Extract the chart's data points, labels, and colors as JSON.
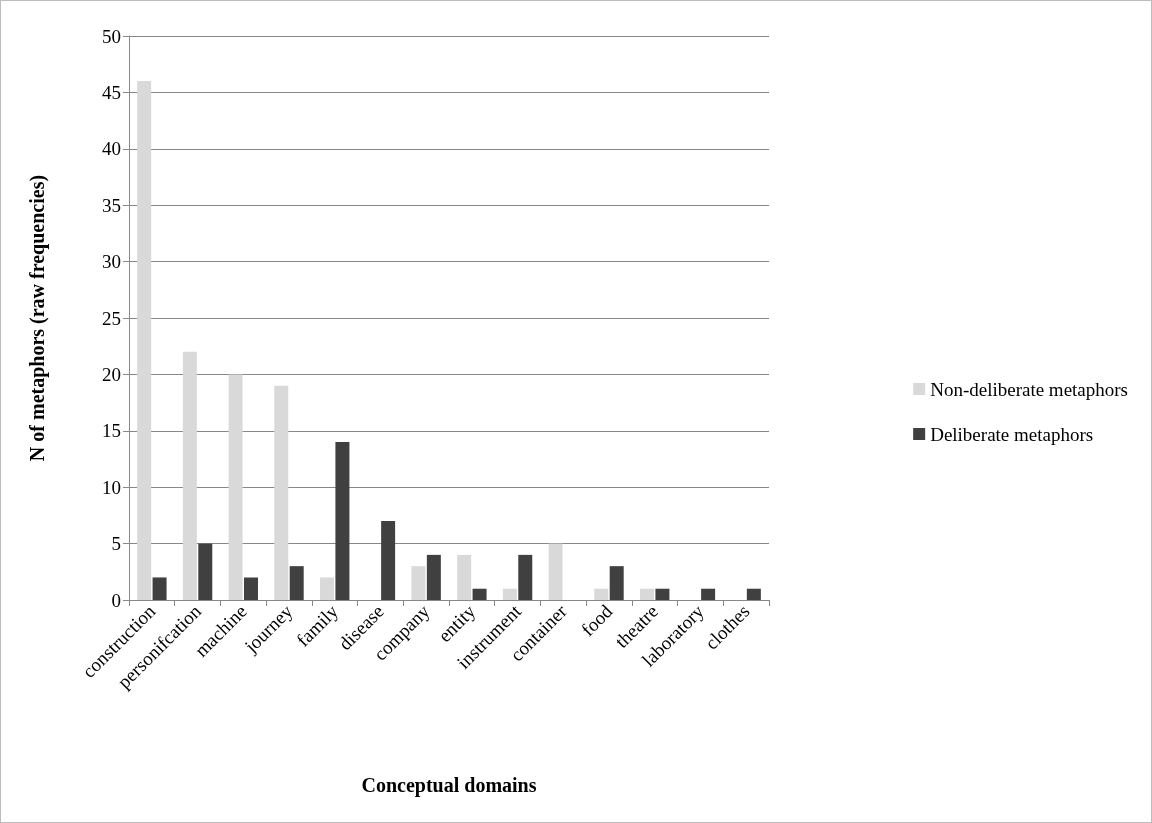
{
  "chart_data": {
    "type": "bar",
    "categories": [
      "construction",
      "personifcation",
      "machine",
      "journey",
      "family",
      "disease",
      "company",
      "entity",
      "instrument",
      "container",
      "food",
      "theatre",
      "laboratory",
      "clothes"
    ],
    "series": [
      {
        "name": "Non-deliberate metaphors",
        "color": "#d9d9d9",
        "values": [
          46,
          22,
          20,
          19,
          2,
          0,
          3,
          4,
          1,
          5,
          1,
          1,
          0,
          0
        ]
      },
      {
        "name": "Deliberate metaphors",
        "color": "#404040",
        "values": [
          2,
          5,
          2,
          3,
          14,
          7,
          4,
          1,
          4,
          0,
          3,
          1,
          1,
          1
        ]
      }
    ],
    "xlabel": "Conceptual domains",
    "ylabel": "N of metaphors (raw frequencies)",
    "ylim": [
      0,
      50
    ],
    "yticks": [
      0,
      5,
      10,
      15,
      20,
      25,
      30,
      35,
      40,
      45,
      50
    ],
    "grid": "y",
    "legend": "right"
  }
}
